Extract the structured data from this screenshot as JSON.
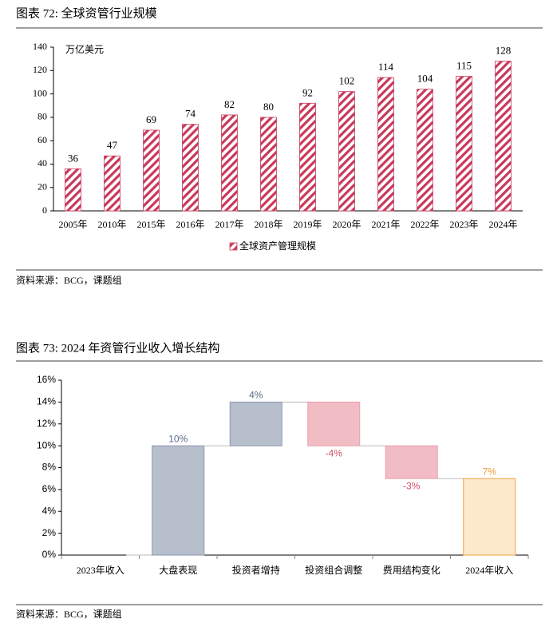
{
  "chart_data": [
    {
      "type": "bar",
      "title": "图表 72: 全球资管行业规模",
      "unit_label": "万亿美元",
      "categories": [
        "2005年",
        "2010年",
        "2015年",
        "2016年",
        "2017年",
        "2018年",
        "2019年",
        "2020年",
        "2021年",
        "2022年",
        "2023年",
        "2024年"
      ],
      "series": [
        {
          "name": "全球资产管理规模",
          "color": "#c8385a",
          "values": [
            36,
            47,
            69,
            74,
            82,
            80,
            92,
            102,
            114,
            104,
            115,
            128
          ]
        }
      ],
      "ylim": [
        0,
        140
      ],
      "yticks": [
        0,
        20,
        40,
        60,
        80,
        100,
        120,
        140
      ],
      "source": "资料来源：BCG，课题组"
    },
    {
      "type": "waterfall",
      "title": "图表 73: 2024 年资管行业收入增长结构",
      "categories": [
        "2023年收入",
        "大盘表现",
        "投资者增持",
        "投资组合调整",
        "费用结构变化",
        "2024年收入"
      ],
      "values": [
        0,
        10,
        4,
        -4,
        -3,
        7
      ],
      "value_labels": [
        null,
        "10%",
        "4%",
        "-4%",
        "-3%",
        "7%"
      ],
      "colors": [
        "#4472c4",
        "#b7bfcd",
        "#b7bfcd",
        "#f2bcc5",
        "#f2bcc5",
        "#fde9cc"
      ],
      "label_colors": [
        null,
        "#5b6a88",
        "#5b6a88",
        "#d0506a",
        "#d0506a",
        "#ef9a30"
      ],
      "edge_colors": [
        "#4472c4",
        "#8e98ab",
        "#8e98ab",
        "#e8a0ac",
        "#e8a0ac",
        "#f4a040"
      ],
      "ylim": [
        0,
        16
      ],
      "yticks": [
        {
          "value": 0,
          "label": "0%"
        },
        {
          "value": 2,
          "label": "2%"
        },
        {
          "value": 4,
          "label": "4%"
        },
        {
          "value": 6,
          "label": "6%"
        },
        {
          "value": 8,
          "label": "8%"
        },
        {
          "value": 10,
          "label": "10%"
        },
        {
          "value": 12,
          "label": "12%"
        },
        {
          "value": 14,
          "label": "14%"
        },
        {
          "value": 16,
          "label": "16%"
        }
      ],
      "source": "资料来源：BCG，课题组"
    }
  ]
}
